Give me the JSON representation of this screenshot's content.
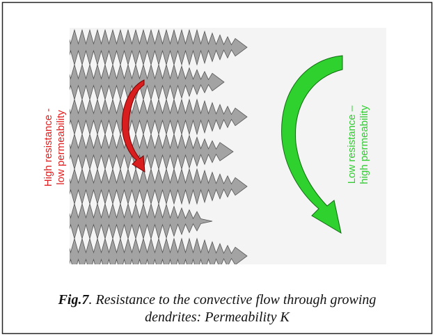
{
  "labels": {
    "left": [
      "High resistance -",
      "low permeability"
    ],
    "right": [
      "Low resistance –",
      "high permeability"
    ]
  },
  "caption": {
    "label": "Fig.7",
    "text": ". Resistance to the convective flow through growing",
    "line2": "dendrites: Permeability K"
  }
}
